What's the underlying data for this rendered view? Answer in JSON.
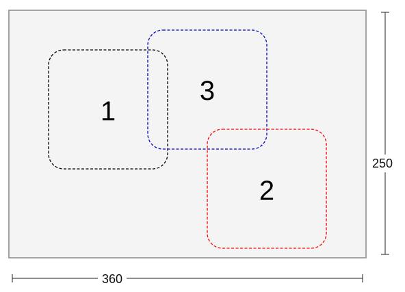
{
  "canvas": {
    "width_units": 360,
    "height_units": 250,
    "background": "#f4f4f4",
    "border_color": "#888888"
  },
  "dimensions": {
    "width_label": "360",
    "height_label": "250"
  },
  "rectangles": [
    {
      "id": "1",
      "label": "1",
      "stroke": "#000000",
      "style": "dashed"
    },
    {
      "id": "2",
      "label": "2",
      "stroke": "#ff0000",
      "style": "dashed"
    },
    {
      "id": "3",
      "label": "3",
      "stroke": "#0000cc",
      "style": "dashed"
    }
  ]
}
